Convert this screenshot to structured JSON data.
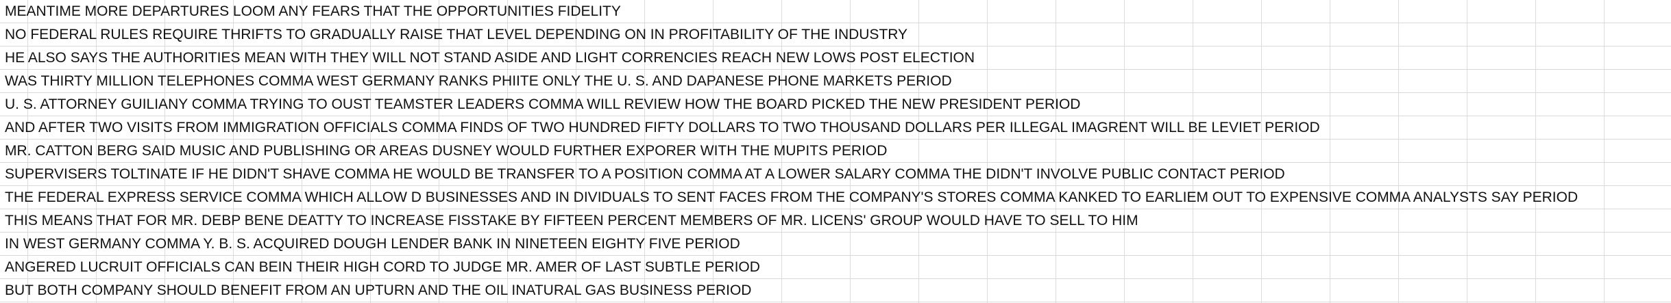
{
  "sheet": {
    "rows": [
      "MEANTIME MORE DEPARTURES LOOM ANY FEARS THAT THE OPPORTUNITIES FIDELITY",
      "NO FEDERAL RULES REQUIRE THRIFTS TO GRADUALLY RAISE THAT LEVEL DEPENDING ON IN PROFITABILITY OF THE INDUSTRY",
      "HE ALSO SAYS THE AUTHORITIES MEAN WITH THEY WILL NOT STAND ASIDE AND LIGHT CORRENCIES REACH NEW LOWS POST ELECTION",
      "WAS THIRTY MILLION TELEPHONES COMMA WEST GERMANY RANKS PHIITE ONLY THE U. S. AND DAPANESE PHONE MARKETS PERIOD",
      "U. S. ATTORNEY GUILIANY COMMA TRYING TO OUST TEAMSTER LEADERS COMMA WILL REVIEW HOW THE BOARD PICKED THE NEW PRESIDENT PERIOD",
      "AND AFTER TWO VISITS FROM IMMIGRATION OFFICIALS COMMA FINDS OF TWO HUNDRED FIFTY DOLLARS TO TWO THOUSAND DOLLARS PER ILLEGAL IMAGRENT WILL BE LEVIET PERIOD",
      "MR. CATTON BERG SAID MUSIC AND PUBLISHING OR AREAS DUSNEY WOULD FURTHER EXPORER WITH THE MUPITS PERIOD",
      "SUPERVISERS TOLTINATE IF HE DIDN'T SHAVE COMMA HE WOULD BE TRANSFER TO A POSITION COMMA AT A LOWER SALARY COMMA THE DIDN'T INVOLVE PUBLIC CONTACT PERIOD",
      "THE FEDERAL EXPRESS SERVICE COMMA WHICH ALLOW D BUSINESSES AND IN DIVIDUALS TO SENT FACES FROM THE COMPANY'S STORES COMMA KANKED TO EARLIEM OUT TO EXPENSIVE COMMA ANALYSTS SAY PERIOD",
      "THIS MEANS THAT FOR MR. DEBP BENE DEATTY TO INCREASE FISSTAKE BY FIFTEEN PERCENT MEMBERS OF MR. LICENS' GROUP WOULD HAVE TO SELL TO HIM",
      "IN WEST GERMANY COMMA Y. B. S. ACQUIRED DOUGH LENDER BANK IN NINETEEN EIGHTY FIVE PERIOD",
      "ANGERED LUCRUIT OFFICIALS CAN BEIN THEIR HIGH CORD TO JUDGE MR. AMER OF LAST SUBTLE PERIOD",
      "BUT BOTH COMPANY SHOULD BENEFIT FROM AN UPTURN AND THE OIL INATURAL GAS BUSINESS PERIOD"
    ]
  }
}
